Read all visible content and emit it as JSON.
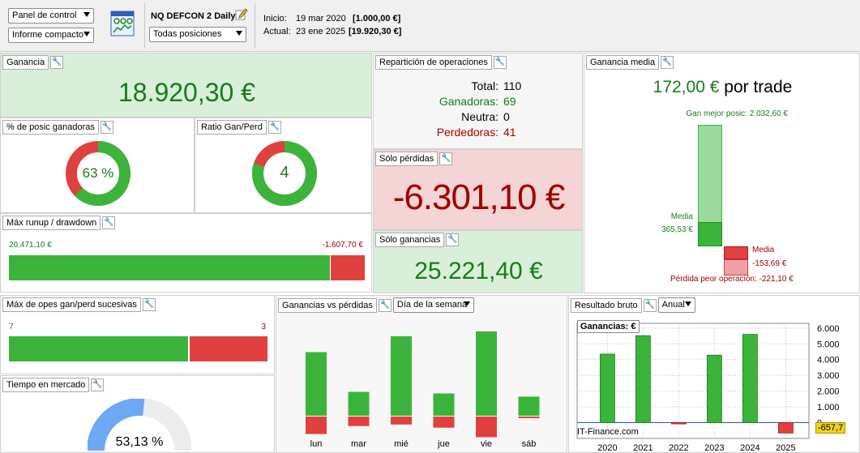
{
  "toolbar": {
    "view_select": "Panel de control",
    "report_select": "Informe compacto",
    "strategy_name": "NQ DEFCON 2 Daily",
    "positions_select": "Todas posiciones",
    "start_label": "Inicio:",
    "start_date": "19 mar 2020",
    "start_value": "[1.000,00 €]",
    "end_label": "Actual:",
    "end_date": "23 ene 2025",
    "end_value": "[19.920,30 €]"
  },
  "ganancia": {
    "title": "Ganancia",
    "value": "18.920,30 €"
  },
  "pct_ganadoras": {
    "title": "% de posic ganadoras",
    "value": "63 %",
    "fraction": 0.63
  },
  "ratio": {
    "title": "Ratio Gan/Perd",
    "value": "4",
    "fraction": 0.8
  },
  "runup": {
    "title": "Máx runup / drawdown",
    "left_value": "20.471,10 €",
    "right_value": "-1.607,70 €",
    "runup": 20471.1,
    "drawdown": 1607.7
  },
  "reparticion": {
    "title": "Repartición de operaciones",
    "rows": [
      {
        "label": "Total:",
        "value": "110"
      },
      {
        "label": "Ganadoras:",
        "value": "69"
      },
      {
        "label": "Neutra:",
        "value": "0"
      },
      {
        "label": "Perdedoras:",
        "value": "41"
      }
    ]
  },
  "solo_perdidas": {
    "title": "Sólo pérdidas",
    "value": "-6.301,10 €"
  },
  "solo_ganancias": {
    "title": "Sólo ganancias",
    "value": "25.221,40 €"
  },
  "ganancia_media": {
    "title": "Ganancia media",
    "value": "172,00 €",
    "suffix": "por trade",
    "best_label": "Gan mejor posic: 2.032,60 €",
    "avg_win_label": "Media",
    "avg_win_value": "365,53 €",
    "avg_loss_label": "Media",
    "avg_loss_value": "-153,69 €",
    "worst_label": "Pérdida peor operación: -221,10 €",
    "best": 2032.6,
    "avg_win": 365.53,
    "avg_loss": 153.69,
    "worst": 221.1
  },
  "sucesivas": {
    "title": "Máx de opes gan/perd sucesivas",
    "left_value": "7",
    "right_value": "3",
    "wins": 7,
    "losses": 3
  },
  "tiempo": {
    "title": "Tiempo en mercado",
    "value": "53,13 %",
    "fraction": 0.5313
  },
  "gvp": {
    "title": "Ganancias vs pérdidas",
    "select": "Día de la semana",
    "chart_data": {
      "type": "bar",
      "categories": [
        "lun",
        "mar",
        "mié",
        "jue",
        "vie",
        "sáb"
      ],
      "series": [
        {
          "name": "",
          "values": [
            4000,
            1500,
            5000,
            1400,
            5300,
            1200
          ]
        },
        {
          "name": "",
          "values": [
            -1100,
            -600,
            -500,
            -700,
            -1300,
            -100
          ]
        }
      ]
    }
  },
  "resultado": {
    "title": "Resultado bruto",
    "select": "Anual",
    "legend": "Ganancias:",
    "legend_unit": "€",
    "watermark": "IT-Finance.com",
    "last_value": "-657,7",
    "chart_data": {
      "type": "bar",
      "categories": [
        "2020",
        "2021",
        "2022",
        "2023",
        "2024",
        "2025"
      ],
      "values": [
        4350,
        5520,
        -80,
        4280,
        5600,
        -657.7
      ],
      "yticks": [
        "6.000",
        "5.000",
        "4.000",
        "3.000",
        "2.000",
        "1.000",
        "0"
      ],
      "ylim": [
        -1000,
        6300
      ]
    }
  },
  "colors": {
    "green": "#3cb43c",
    "red": "#e04040",
    "light_green": "#9cd99c",
    "light_red": "#f0a0a0",
    "blue": "#6ea8f5"
  }
}
